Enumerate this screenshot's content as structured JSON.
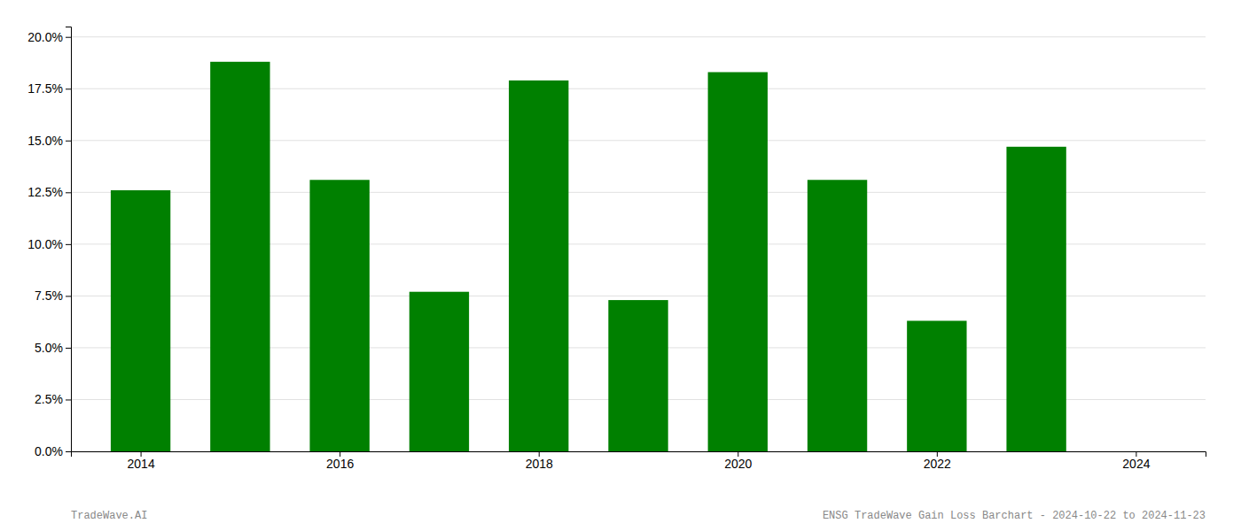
{
  "chart_data": {
    "type": "bar",
    "x": [
      2014,
      2015,
      2016,
      2017,
      2018,
      2019,
      2020,
      2021,
      2022,
      2023
    ],
    "values": [
      0.126,
      0.188,
      0.131,
      0.077,
      0.179,
      0.073,
      0.183,
      0.131,
      0.063,
      0.147
    ],
    "color": "#008000",
    "xlim": [
      2013.3,
      2024.7
    ],
    "xticks": [
      2014,
      2016,
      2018,
      2020,
      2022,
      2024
    ],
    "ylim": [
      0,
      0.205
    ],
    "yticks": [
      {
        "value": 0.0,
        "label": "0.0%"
      },
      {
        "value": 0.025,
        "label": "2.5%"
      },
      {
        "value": 0.05,
        "label": "5.0%"
      },
      {
        "value": 0.075,
        "label": "7.5%"
      },
      {
        "value": 0.1,
        "label": "10.0%"
      },
      {
        "value": 0.125,
        "label": "12.5%"
      },
      {
        "value": 0.15,
        "label": "15.0%"
      },
      {
        "value": 0.175,
        "label": "17.5%"
      },
      {
        "value": 0.2,
        "label": "20.0%"
      }
    ],
    "grid": true,
    "annotations": [
      "TradeWave.AI",
      "ENSG TradeWave Gain Loss Barchart - 2024-10-22 to 2024-11-23"
    ]
  }
}
